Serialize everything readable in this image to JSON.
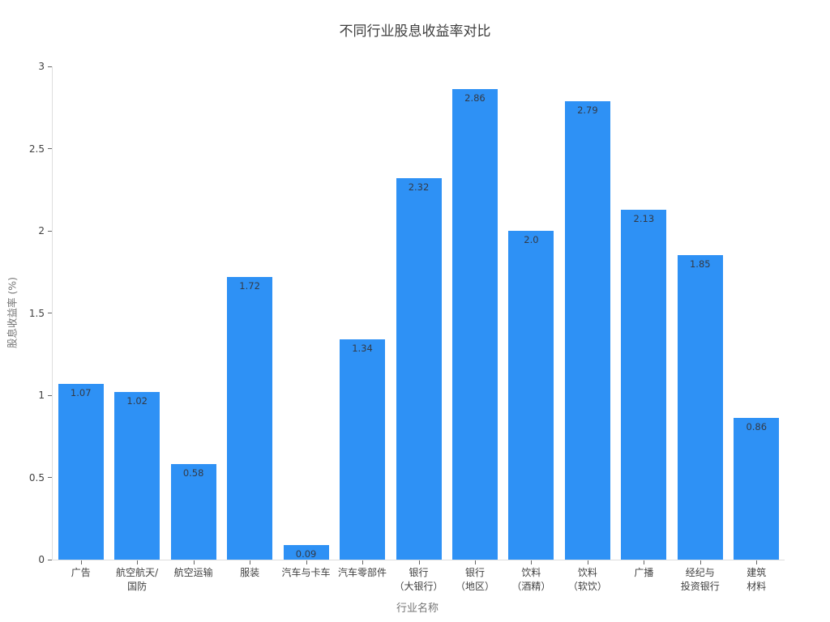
{
  "chart_data": {
    "type": "bar",
    "title": "不同行业股息收益率对比",
    "xlabel": "行业名称",
    "ylabel": "股息收益率 (%)",
    "categories": [
      "广告",
      "航空航天/\n国防",
      "航空运输",
      "服装",
      "汽车与卡车",
      "汽车零部件",
      "银行\n（大银行）",
      "银行\n（地区）",
      "饮料\n（酒精）",
      "饮料\n（软饮）",
      "广播",
      "经纪与\n投资银行",
      "建筑材料"
    ],
    "values": [
      1.07,
      1.02,
      0.58,
      1.72,
      0.09,
      1.34,
      2.32,
      2.86,
      2.0,
      2.79,
      2.13,
      1.85,
      0.86
    ],
    "value_labels": [
      "1.07",
      "1.02",
      "0.58",
      "1.72",
      "0.09",
      "1.34",
      "2.32",
      "2.86",
      "2.0",
      "2.79",
      "2.13",
      "1.85",
      "0.86"
    ],
    "ylim": [
      0,
      3
    ],
    "yticks": [
      0,
      0.5,
      1,
      1.5,
      2,
      2.5,
      3
    ],
    "ytick_labels": [
      "0",
      "0.5",
      "1",
      "1.5",
      "2",
      "2.5",
      "3"
    ],
    "bar_color": "#2E91F5",
    "value_label_color": "#333a46",
    "axis_line_color": "#dedede",
    "tick_color": "#666666",
    "grid": false,
    "legend": "none",
    "bar_width_fraction": 0.8
  }
}
